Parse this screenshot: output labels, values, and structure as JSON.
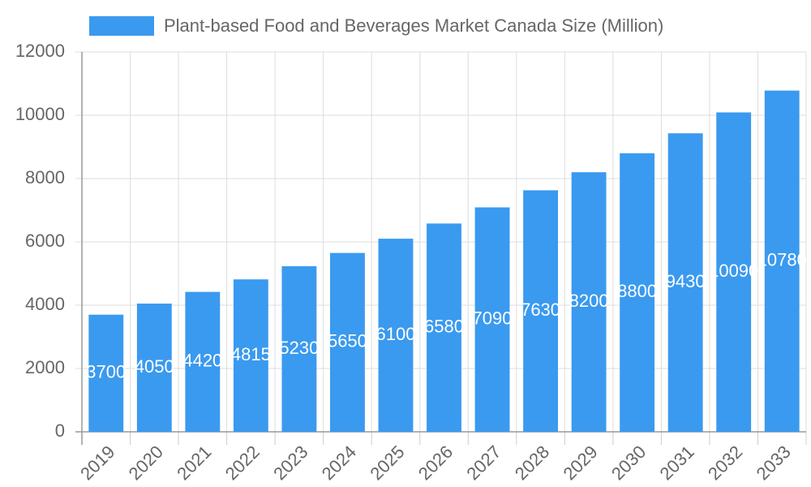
{
  "chart_data": {
    "type": "bar",
    "legend_label": "Plant-based Food and Beverages Market Canada Size (Million)",
    "categories": [
      "2019",
      "2020",
      "2021",
      "2022",
      "2023",
      "2024",
      "2025",
      "2026",
      "2027",
      "2028",
      "2029",
      "2030",
      "2031",
      "2032",
      "2033"
    ],
    "values": [
      3700,
      4050,
      4420,
      4815,
      5230,
      5650,
      6100,
      6580,
      7090,
      7630,
      8200,
      8800,
      9430,
      10090,
      10780
    ],
    "color": "#3a9aef",
    "ylim": [
      0,
      12000
    ],
    "yticks": [
      0,
      2000,
      4000,
      6000,
      8000,
      10000,
      12000
    ],
    "grid": true,
    "legend": "top"
  }
}
